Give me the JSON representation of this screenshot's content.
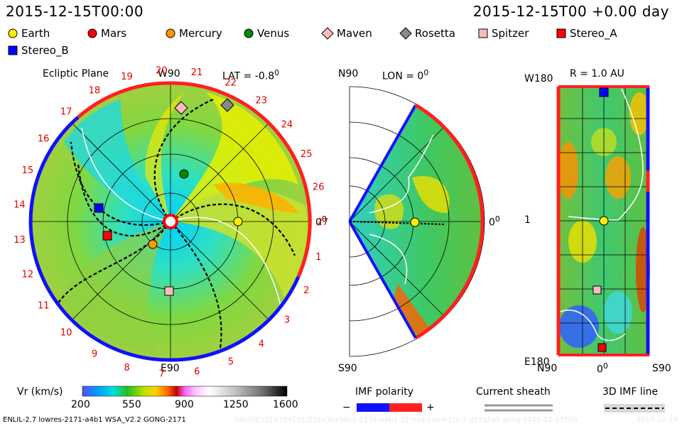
{
  "header": {
    "left_time": "2015-12-15T00:00",
    "right_time": "2015-12-15T00 +0.00 day"
  },
  "legend": [
    {
      "name": "Earth",
      "shape": "circle",
      "color": "#ffee00"
    },
    {
      "name": "Mars",
      "shape": "circle",
      "color": "#ff0000"
    },
    {
      "name": "Mercury",
      "shape": "circle",
      "color": "#ff9900"
    },
    {
      "name": "Venus",
      "shape": "circle",
      "color": "#008800"
    },
    {
      "name": "Maven",
      "shape": "diamond",
      "color": "#ffbbbb"
    },
    {
      "name": "Rosetta",
      "shape": "diamond",
      "color": "#888888"
    },
    {
      "name": "Spitzer",
      "shape": "square",
      "color": "#ffbbbb"
    },
    {
      "name": "Stereo_A",
      "shape": "square",
      "color": "#ff0000"
    },
    {
      "name": "Stereo_B",
      "shape": "square",
      "color": "#0000ff"
    }
  ],
  "ecliptic": {
    "title": "Ecliptic Plane",
    "top_label": "W90",
    "bottom_label": "E90",
    "lat_label": "LAT = -0.8",
    "lat_sup": "0",
    "zero_label": "0",
    "zero_sup": "0"
  },
  "meridional": {
    "top_label": "N90",
    "bottom_label": "S90",
    "lon_label": "LON = 0",
    "lon_sup": "0",
    "zero_label": "0",
    "zero_sup": "0"
  },
  "radial": {
    "title": "R = 1.0 AU",
    "y_top": "W180",
    "y_mid": "1",
    "y_bottom": "E180",
    "x_left": "N90",
    "x_mid": "0",
    "x_mid_sup": "0",
    "x_right": "S90"
  },
  "colorbar": {
    "label": "Vr (km/s)",
    "ticks": [
      "200",
      "550",
      "900",
      "1250",
      "1600"
    ]
  },
  "imf": {
    "label": "IMF polarity",
    "minus": "−",
    "plus": "+"
  },
  "current_sheath": {
    "label": "Current sheath"
  },
  "imf_line": {
    "label": "3D IMF line"
  },
  "footer": {
    "model": "ENLIL-2.7 lowres-2171-a4b1 WSA_V2.2 GONG-2171",
    "run_id": "UNOUE1216154131/256x30x90x1-2171-a4b1.32-mcp1umn1cz-1.g53q5a0 gong-2015-12-15T00",
    "right": "2015-12-16"
  },
  "chart_data": [
    {
      "type": "heatmap",
      "title": "Ecliptic Plane",
      "view": "polar",
      "carrington_ticks": [
        "1",
        "2",
        "3",
        "4",
        "5",
        "6",
        "7",
        "8",
        "9",
        "10",
        "11",
        "12",
        "13",
        "14",
        "15",
        "16",
        "17",
        "18",
        "19",
        "20",
        "21",
        "22",
        "23",
        "24",
        "25",
        "26",
        "27"
      ],
      "objects": [
        "Earth",
        "Mars",
        "Mercury",
        "Venus",
        "Maven",
        "Rosetta",
        "Spitzer",
        "Stereo_A",
        "Stereo_B"
      ]
    },
    {
      "type": "heatmap",
      "title": "LON = 0",
      "view": "meridional",
      "objects": [
        "Earth"
      ]
    },
    {
      "type": "heatmap",
      "title": "R = 1.0 AU",
      "view": "latitude-longitude",
      "objects": [
        "Earth",
        "Spitzer",
        "Stereo_A",
        "Stereo_B"
      ]
    }
  ]
}
